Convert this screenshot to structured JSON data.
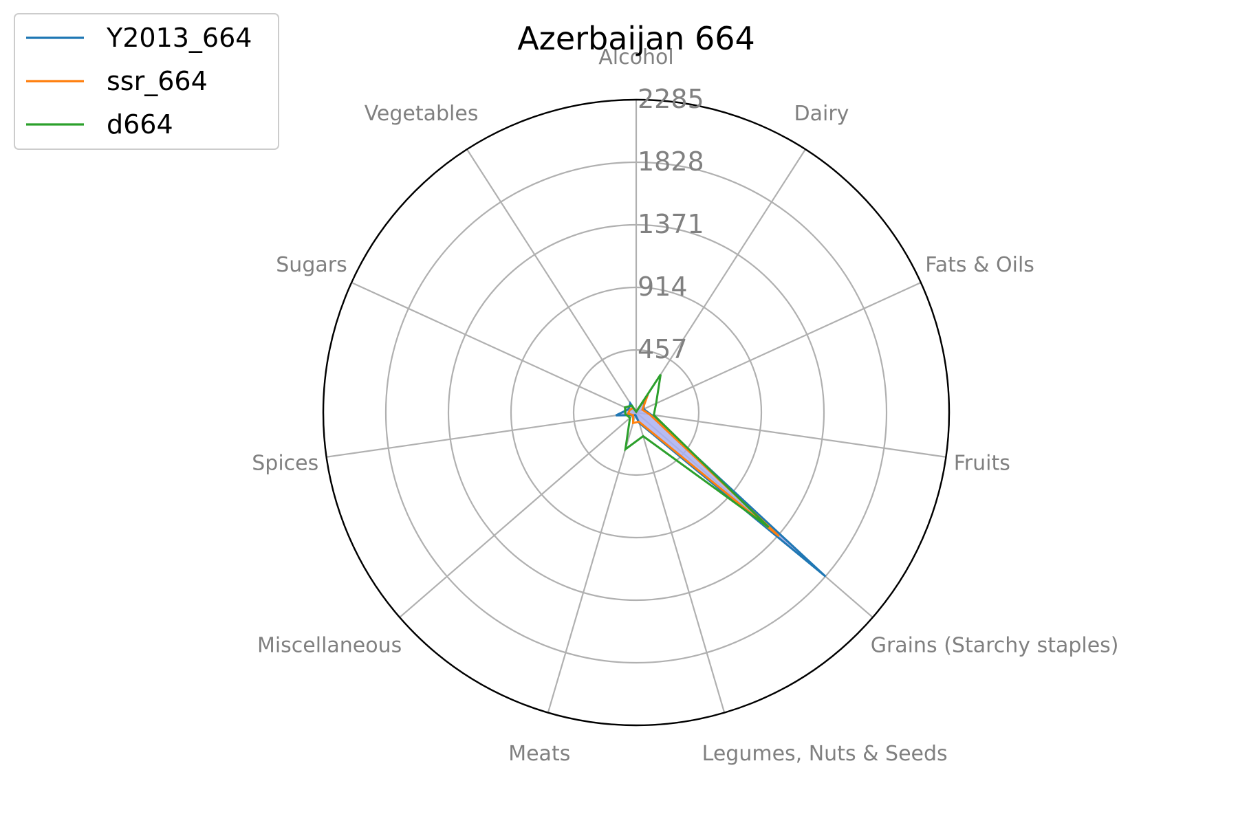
{
  "chart_data": {
    "type": "radar",
    "title": "Azerbaijan 664",
    "categories": [
      "Alcohol",
      "Dairy",
      "Fats & Oils",
      "Fruits",
      "Grains (Starchy staples)",
      "Legumes, Nuts & Seeds",
      "Meats",
      "Miscellaneous",
      "Spices",
      "Sugars",
      "Vegetables"
    ],
    "rlim": [
      0,
      2285
    ],
    "rticks": [
      457,
      914,
      1371,
      1828,
      2285
    ],
    "rtick_labels": [
      "457",
      "914",
      "1371",
      "1828",
      "2285"
    ],
    "grid": true,
    "legend_position": "upper-left",
    "fill_color": "#aab0f0",
    "series": [
      {
        "name": "Y2013_664",
        "color": "#1f77b4",
        "values": [
          5,
          110,
          60,
          110,
          1830,
          80,
          20,
          30,
          150,
          60,
          80
        ]
      },
      {
        "name": "ssr_664",
        "color": "#ff7f0e",
        "values": [
          5,
          160,
          50,
          100,
          1380,
          70,
          80,
          30,
          60,
          50,
          40
        ]
      },
      {
        "name": "d664",
        "color": "#2ca02c",
        "values": [
          5,
          330,
          160,
          130,
          1280,
          180,
          280,
          60,
          80,
          90,
          60
        ]
      }
    ]
  }
}
